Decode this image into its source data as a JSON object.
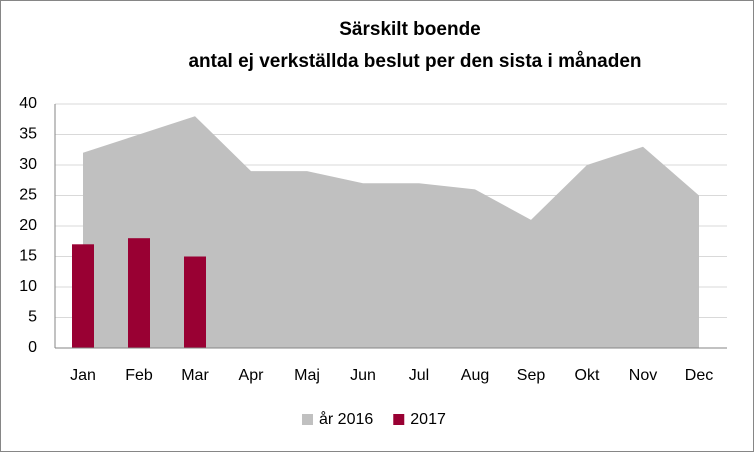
{
  "chart_data": {
    "type": "combo",
    "title": [
      "Särskilt boende",
      "antal ej verkställda beslut per den sista i månaden"
    ],
    "categories": [
      "Jan",
      "Feb",
      "Mar",
      "Apr",
      "Maj",
      "Jun",
      "Jul",
      "Aug",
      "Sep",
      "Okt",
      "Nov",
      "Dec"
    ],
    "series": [
      {
        "name": "år 2016",
        "type": "area",
        "color": "#c0c0c0",
        "values": [
          32,
          35,
          38,
          29,
          29,
          27,
          27,
          26,
          21,
          30,
          33,
          25
        ]
      },
      {
        "name": "2017",
        "type": "bar",
        "color": "#990033",
        "values": [
          17,
          18,
          15,
          null,
          null,
          null,
          null,
          null,
          null,
          null,
          null,
          null
        ]
      }
    ],
    "ylim": [
      0,
      40
    ],
    "yticks": [
      0,
      5,
      10,
      15,
      20,
      25,
      30,
      35,
      40
    ],
    "grid": true,
    "legend": "bottom"
  }
}
